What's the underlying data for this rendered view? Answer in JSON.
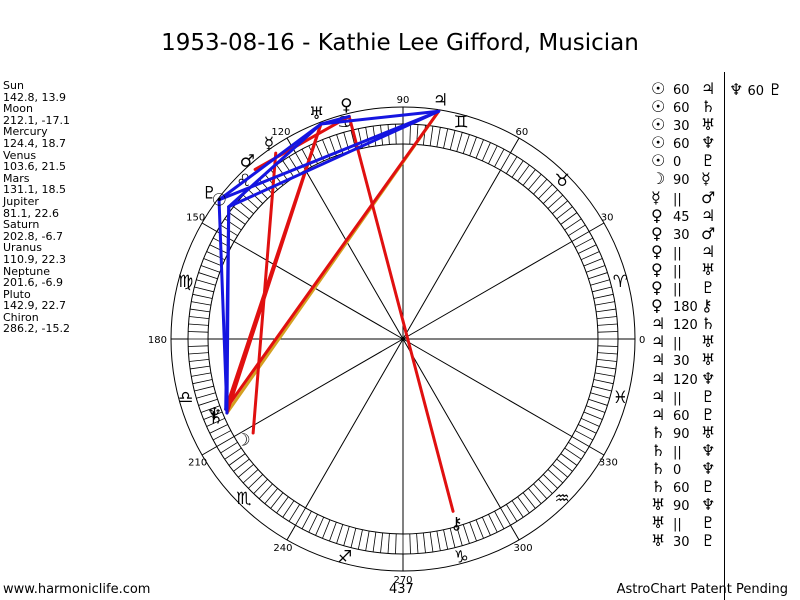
{
  "title": "1953-08-16 - Kathie Lee Gifford, Musician",
  "positions": [
    {
      "name": "Sun",
      "value": "142.8, 13.9"
    },
    {
      "name": "Moon",
      "value": "212.1, -17.1"
    },
    {
      "name": "Mercury",
      "value": "124.4, 18.7"
    },
    {
      "name": "Venus",
      "value": "103.6, 21.5"
    },
    {
      "name": "Mars",
      "value": "131.1, 18.5"
    },
    {
      "name": "Jupiter",
      "value": "81.1, 22.6"
    },
    {
      "name": "Saturn",
      "value": "202.8, -6.7"
    },
    {
      "name": "Uranus",
      "value": "110.9, 22.3"
    },
    {
      "name": "Neptune",
      "value": "201.6, -6.9"
    },
    {
      "name": "Pluto",
      "value": "142.9, 22.7"
    },
    {
      "name": "Chiron",
      "value": "286.2, -15.2"
    }
  ],
  "aspects": [
    {
      "p1": "☉",
      "angle": "60",
      "p2": "♃"
    },
    {
      "p1": "☉",
      "angle": "60",
      "p2": "♄"
    },
    {
      "p1": "☉",
      "angle": "30",
      "p2": "♅"
    },
    {
      "p1": "☉",
      "angle": "60",
      "p2": "♆"
    },
    {
      "p1": "☉",
      "angle": "0",
      "p2": "♇"
    },
    {
      "p1": "☽",
      "angle": "90",
      "p2": "☿"
    },
    {
      "p1": "☿",
      "angle": "||",
      "p2": "♂"
    },
    {
      "p1": "♀",
      "angle": "45",
      "p2": "♃"
    },
    {
      "p1": "♀",
      "angle": "30",
      "p2": "♂"
    },
    {
      "p1": "♀",
      "angle": "||",
      "p2": "♃"
    },
    {
      "p1": "♀",
      "angle": "||",
      "p2": "♅"
    },
    {
      "p1": "♀",
      "angle": "||",
      "p2": "♇"
    },
    {
      "p1": "♀",
      "angle": "180",
      "p2": "⚷"
    },
    {
      "p1": "♃",
      "angle": "120",
      "p2": "♄"
    },
    {
      "p1": "♃",
      "angle": "||",
      "p2": "♅"
    },
    {
      "p1": "♃",
      "angle": "30",
      "p2": "♅"
    },
    {
      "p1": "♃",
      "angle": "120",
      "p2": "♆"
    },
    {
      "p1": "♃",
      "angle": "||",
      "p2": "♇"
    },
    {
      "p1": "♃",
      "angle": "60",
      "p2": "♇"
    },
    {
      "p1": "♄",
      "angle": "90",
      "p2": "♅"
    },
    {
      "p1": "♄",
      "angle": "||",
      "p2": "♆"
    },
    {
      "p1": "♄",
      "angle": "0",
      "p2": "♆"
    },
    {
      "p1": "♄",
      "angle": "60",
      "p2": "♇"
    },
    {
      "p1": "♅",
      "angle": "90",
      "p2": "♆"
    },
    {
      "p1": "♅",
      "angle": "||",
      "p2": "♇"
    },
    {
      "p1": "♅",
      "angle": "30",
      "p2": "♇"
    }
  ],
  "aspects_extra": {
    "p1": "♆",
    "angle": "60",
    "p2": "♇"
  },
  "wheel": {
    "degree_labels": [
      {
        "deg": 0,
        "text": "0"
      },
      {
        "deg": 30,
        "text": "30"
      },
      {
        "deg": 60,
        "text": "60"
      },
      {
        "deg": 90,
        "text": "90"
      },
      {
        "deg": 120,
        "text": "120"
      },
      {
        "deg": 150,
        "text": "150"
      },
      {
        "deg": 180,
        "text": "180"
      },
      {
        "deg": 210,
        "text": "210"
      },
      {
        "deg": 240,
        "text": "240"
      },
      {
        "deg": 270,
        "text": "270"
      },
      {
        "deg": 300,
        "text": "300"
      },
      {
        "deg": 330,
        "text": "330"
      }
    ],
    "signs": [
      {
        "deg": 15,
        "glyph": "♈"
      },
      {
        "deg": 45,
        "glyph": "♉"
      },
      {
        "deg": 75,
        "glyph": "♊"
      },
      {
        "deg": 105,
        "glyph": "♋"
      },
      {
        "deg": 135,
        "glyph": "♌"
      },
      {
        "deg": 165,
        "glyph": "♍"
      },
      {
        "deg": 195,
        "glyph": "♎"
      },
      {
        "deg": 225,
        "glyph": "♏"
      },
      {
        "deg": 255,
        "glyph": "♐"
      },
      {
        "deg": 285,
        "glyph": "♑"
      },
      {
        "deg": 315,
        "glyph": "♒"
      },
      {
        "deg": 345,
        "glyph": "♓"
      }
    ],
    "planets": [
      {
        "name": "Sun",
        "glyph": "☉",
        "lon": 142.8,
        "lat": 13.9
      },
      {
        "name": "Moon",
        "glyph": "☽",
        "lon": 212.1,
        "lat": -17.1
      },
      {
        "name": "Mercury",
        "glyph": "☿",
        "lon": 124.4,
        "lat": 18.7
      },
      {
        "name": "Venus",
        "glyph": "♀",
        "lon": 103.6,
        "lat": 21.5
      },
      {
        "name": "Mars",
        "glyph": "♂",
        "lon": 131.1,
        "lat": 18.5
      },
      {
        "name": "Jupiter",
        "glyph": "♃",
        "lon": 81.1,
        "lat": 22.6
      },
      {
        "name": "Saturn",
        "glyph": "♄",
        "lon": 202.8,
        "lat": -6.7
      },
      {
        "name": "Uranus",
        "glyph": "♅",
        "lon": 110.9,
        "lat": 22.3
      },
      {
        "name": "Neptune",
        "glyph": "♆",
        "lon": 201.6,
        "lat": -6.9
      },
      {
        "name": "Pluto",
        "glyph": "♇",
        "lon": 142.9,
        "lat": 22.7
      },
      {
        "name": "Chiron",
        "glyph": "⚷",
        "lon": 286.2,
        "lat": -15.2
      }
    ],
    "aspect_lines": [
      {
        "from": "Jupiter",
        "to": "Saturn",
        "color": "#d4a020"
      },
      {
        "from": "Venus",
        "to": "Chiron",
        "color": "#e01010"
      },
      {
        "from": "Jupiter",
        "to": "Neptune",
        "color": "#e01010"
      },
      {
        "from": "Venus",
        "to": "Mars",
        "color": "#e01010"
      },
      {
        "from": "Mercury",
        "to": "Moon",
        "color": "#e01010"
      },
      {
        "from": "Uranus",
        "to": "Saturn",
        "color": "#e01010"
      },
      {
        "from": "Uranus",
        "to": "Neptune",
        "color": "#e01010"
      },
      {
        "from": "Sun",
        "to": "Saturn",
        "color": "#1515e0"
      },
      {
        "from": "Sun",
        "to": "Neptune",
        "color": "#1515e0"
      },
      {
        "from": "Sun",
        "to": "Uranus",
        "color": "#1515e0"
      },
      {
        "from": "Jupiter",
        "to": "Sun",
        "color": "#1515e0"
      },
      {
        "from": "Jupiter",
        "to": "Pluto",
        "color": "#1515e0"
      },
      {
        "from": "Jupiter",
        "to": "Uranus",
        "color": "#1515e0"
      },
      {
        "from": "Pluto",
        "to": "Saturn",
        "color": "#1515e0"
      },
      {
        "from": "Uranus",
        "to": "Pluto",
        "color": "#1515e0"
      },
      {
        "from": "Venus",
        "to": "Uranus",
        "color": "#1515e0"
      }
    ]
  },
  "footer": {
    "left": "www.harmoniclife.com",
    "center": "437",
    "right": "AstroChart Patent Pending"
  }
}
